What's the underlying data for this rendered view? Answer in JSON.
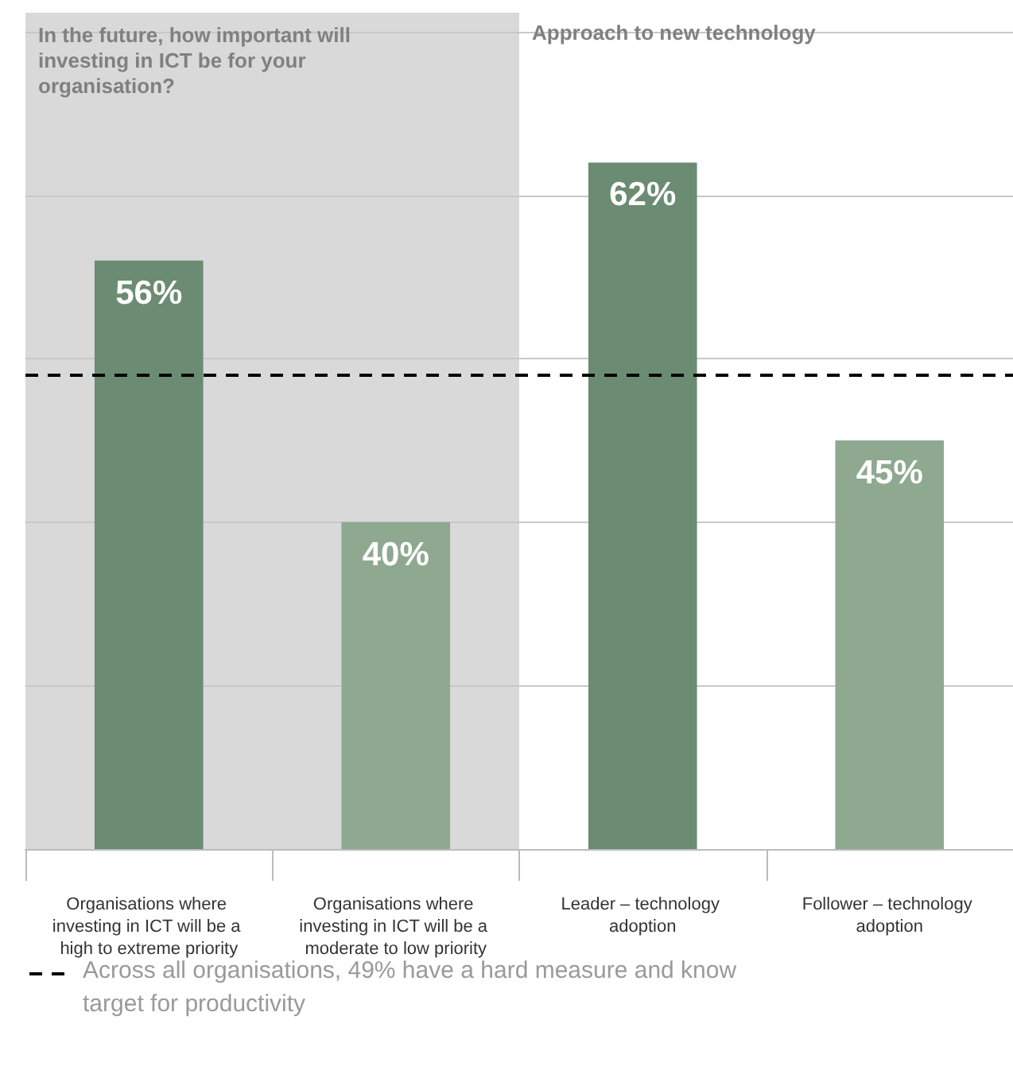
{
  "chart_data": {
    "type": "bar",
    "categories": [
      "Organisations where investing in ICT will be a high to extreme priority",
      "Organisations where investing in ICT will be a moderate to low priority",
      "Leader – technology adoption",
      "Follower – technology adoption"
    ],
    "values": [
      56,
      40,
      62,
      45
    ],
    "colors": [
      "#6b8c72",
      "#8fa991",
      "#6b8c72",
      "#8fa991"
    ],
    "value_labels": [
      "56%",
      "40%",
      "62%",
      "45%"
    ],
    "ylim": [
      20,
      70
    ],
    "tick_labels": "x",
    "grid": "y",
    "bands": [
      {
        "axis": "x",
        "from": "Organisations where investing in ICT will be a high to extreme priority",
        "to": "Organisations where investing in ICT will be a moderate to low priority",
        "label": "In the future, how important will investing in ICT be for your organisation?",
        "color": "#d9d9d9"
      }
    ],
    "annotations": [
      "Approach to new technology"
    ],
    "ref_lines": [
      {
        "axis": "y",
        "value": 49,
        "label": "Across all organisations, 49% have a hard measure and know target for productivity",
        "color": "#000000",
        "line_style": "dashed"
      }
    ]
  }
}
